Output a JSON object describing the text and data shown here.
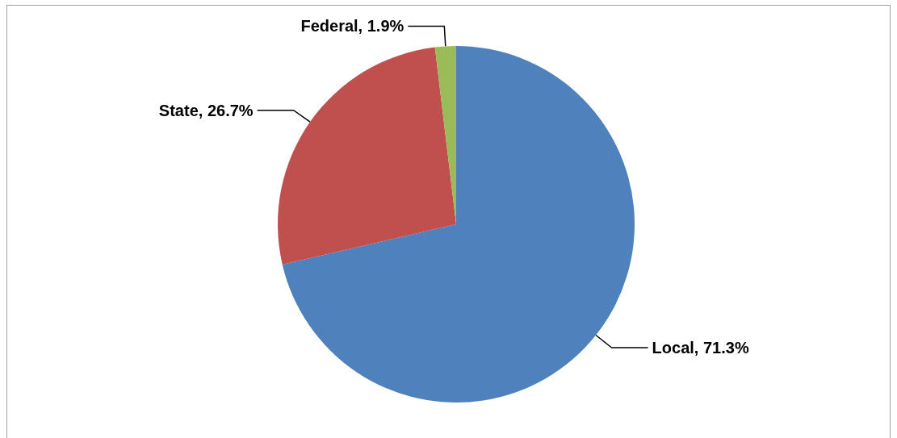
{
  "chart_data": {
    "type": "pie",
    "categories": [
      "Local",
      "State",
      "Federal"
    ],
    "values": [
      71.3,
      26.7,
      1.9
    ],
    "colors": [
      "#4f81bd",
      "#c0504d",
      "#9bbb59"
    ],
    "value_labels": [
      "71.3%",
      "26.7%",
      "1.9%"
    ],
    "legend": false
  }
}
